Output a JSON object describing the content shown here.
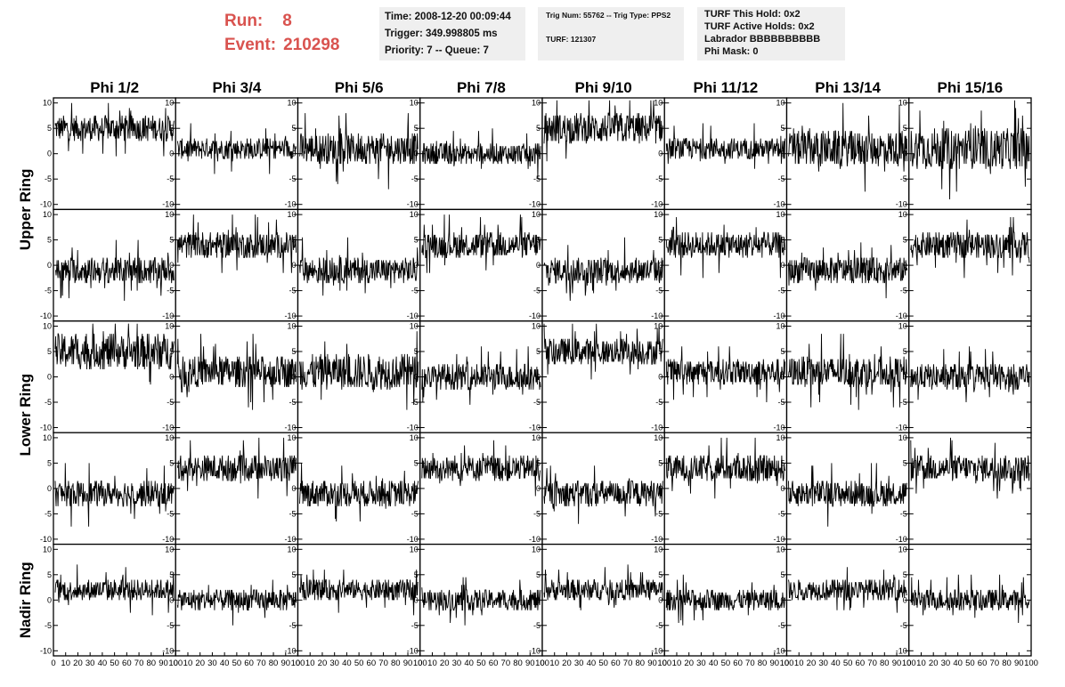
{
  "run": {
    "label": "Run:",
    "value": "8"
  },
  "event": {
    "label": "Event:",
    "value": "210298"
  },
  "info1": {
    "time": "Time: 2008-12-20 00:09:44",
    "trigger": "Trigger: 349.998805 ms",
    "priority": "Priority: 7 -- Queue: 7"
  },
  "info2": {
    "trig": "Trig Num: 55762 -- Trig Type: PPS2",
    "turf": "TURF: 121307"
  },
  "info3": {
    "hold": "TURF This Hold: 0x2",
    "active": "TURF Active Holds: 0x2",
    "labrador": "Labrador BBBBBBBBBB",
    "mask": "Phi Mask: 0"
  },
  "colors": {
    "title_red": "#d9534f",
    "info_bg": "#efefef",
    "trace": "#000000"
  },
  "phi_labels": [
    "Phi 1/2",
    "Phi 3/4",
    "Phi 5/6",
    "Phi 7/8",
    "Phi 9/10",
    "Phi 11/12",
    "Phi 13/14",
    "Phi 15/16"
  ],
  "ring_labels": [
    "Upper Ring",
    "Lower Ring",
    "Nadir Ring"
  ],
  "chart_data": {
    "type": "line",
    "panels": {
      "rows": 5,
      "cols": 8
    },
    "ylim": [
      -11,
      11
    ],
    "xlim": [
      0,
      100
    ],
    "y_ticks": [
      "10",
      "5",
      "0",
      "-5",
      "-10"
    ],
    "x_ticks": [
      "0",
      "10",
      "20",
      "30",
      "40",
      "50",
      "60",
      "70",
      "80",
      "90",
      "100"
    ],
    "baselines": [
      [
        5,
        1,
        1,
        0,
        5,
        1,
        1,
        1
      ],
      [
        -1,
        4,
        -1,
        4,
        -1,
        4,
        -1,
        4
      ],
      [
        5,
        1,
        1,
        0,
        5,
        1,
        1,
        0
      ],
      [
        -1,
        4,
        -1,
        4,
        -1,
        4,
        -1,
        4
      ],
      [
        2,
        0,
        2,
        0,
        2,
        0,
        2,
        0
      ]
    ],
    "amplitudes": [
      [
        2.5,
        2,
        3,
        2,
        3,
        2,
        3.5,
        4
      ],
      [
        2.5,
        2.5,
        2.5,
        2.5,
        2.5,
        2.5,
        2.5,
        2.5
      ],
      [
        3.5,
        3,
        3.5,
        2.5,
        2.5,
        2.5,
        3,
        2.5
      ],
      [
        2.5,
        2.5,
        2.5,
        2.5,
        2.5,
        2.5,
        2.5,
        2.5
      ],
      [
        2,
        2,
        2,
        2,
        2,
        2,
        2,
        2
      ]
    ],
    "samples_per_trace": 260
  }
}
